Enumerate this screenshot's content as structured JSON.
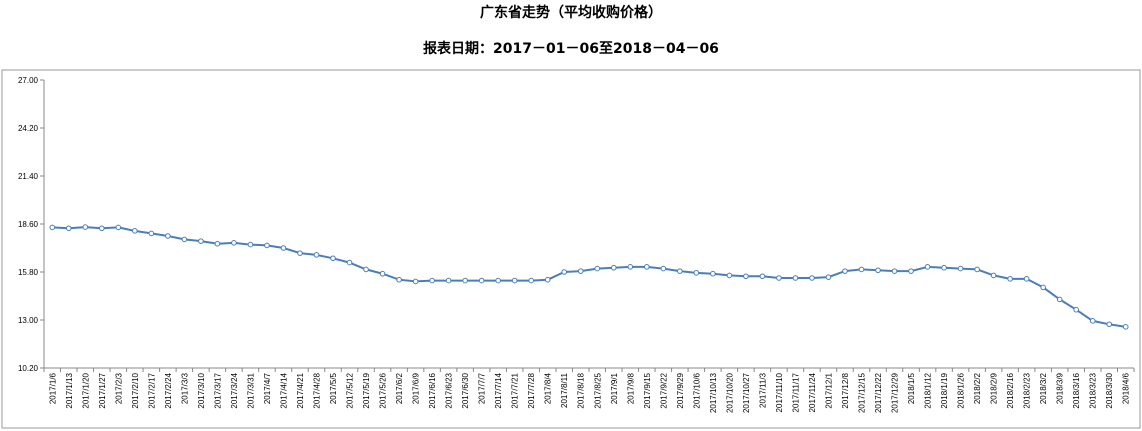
{
  "chart_data": {
    "type": "line",
    "title": "广东省走势（平均收购价格）",
    "subtitle": "报表日期：2017－01－06至2018－04－06",
    "ylim": [
      10.2,
      27.0
    ],
    "yticks": [
      "27.00",
      "24.20",
      "21.40",
      "18.60",
      "15.80",
      "13.00",
      "10.20"
    ],
    "grid": false,
    "legend": "none",
    "line_color": "#4a7ebb",
    "x": [
      "2017/1/6",
      "2017/1/13",
      "2017/1/20",
      "2017/1/27",
      "2017/2/3",
      "2017/2/10",
      "2017/2/17",
      "2017/2/24",
      "2017/3/3",
      "2017/3/10",
      "2017/3/17",
      "2017/3/24",
      "2017/3/31",
      "2017/4/7",
      "2017/4/14",
      "2017/4/21",
      "2017/4/28",
      "2017/5/5",
      "2017/5/12",
      "2017/5/19",
      "2017/5/26",
      "2017/6/2",
      "2017/6/9",
      "2017/6/16",
      "2017/6/23",
      "2017/6/30",
      "2017/7/7",
      "2017/7/14",
      "2017/7/21",
      "2017/7/28",
      "2017/8/4",
      "2017/8/11",
      "2017/8/18",
      "2017/8/25",
      "2017/9/1",
      "2017/9/8",
      "2017/9/15",
      "2017/9/22",
      "2017/9/29",
      "2017/10/6",
      "2017/10/13",
      "2017/10/20",
      "2017/10/27",
      "2017/11/3",
      "2017/11/10",
      "2017/11/17",
      "2017/11/24",
      "2017/12/1",
      "2017/12/8",
      "2017/12/15",
      "2017/12/22",
      "2017/12/29",
      "2018/1/5",
      "2018/1/12",
      "2018/1/19",
      "2018/1/26",
      "2018/2/2",
      "2018/2/9",
      "2018/2/16",
      "2018/2/23",
      "2018/3/2",
      "2018/3/9",
      "2018/3/16",
      "2018/3/23",
      "2018/3/30",
      "2018/4/6"
    ],
    "values": [
      18.4,
      18.35,
      18.42,
      18.35,
      18.4,
      18.2,
      18.05,
      17.9,
      17.7,
      17.6,
      17.45,
      17.5,
      17.4,
      17.35,
      17.2,
      16.9,
      16.8,
      16.6,
      16.35,
      15.95,
      15.7,
      15.35,
      15.25,
      15.3,
      15.3,
      15.3,
      15.3,
      15.3,
      15.3,
      15.3,
      15.35,
      15.8,
      15.85,
      16.0,
      16.05,
      16.1,
      16.1,
      16.0,
      15.85,
      15.75,
      15.7,
      15.6,
      15.55,
      15.55,
      15.45,
      15.45,
      15.45,
      15.5,
      15.85,
      15.95,
      15.9,
      15.85,
      15.85,
      16.1,
      16.05,
      16.0,
      15.95,
      15.6,
      15.4,
      15.4,
      14.9,
      14.2,
      13.6,
      12.95,
      12.75,
      12.6
    ]
  }
}
